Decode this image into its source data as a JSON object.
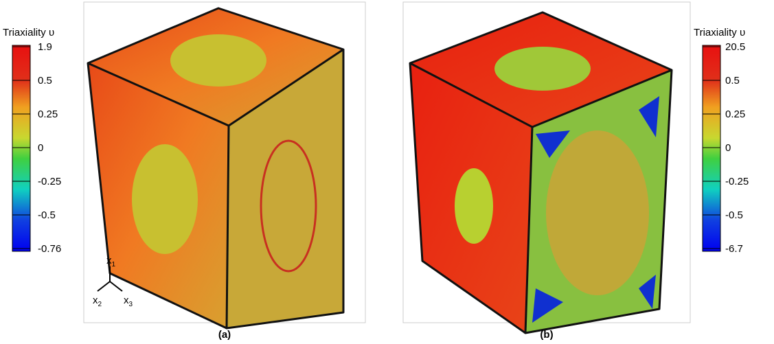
{
  "panels": [
    {
      "label": "(a)",
      "colorbar": {
        "title": "Triaxiality υ",
        "ticks": [
          "1.9",
          "0.5",
          "0.25",
          "0",
          "-0.25",
          "-0.5",
          "-0.76"
        ]
      }
    },
    {
      "label": "(b)",
      "colorbar": {
        "title": "Triaxiality υ",
        "ticks": [
          "20.5",
          "0.5",
          "0.25",
          "0",
          "-0.25",
          "-0.5",
          "-6.7"
        ]
      }
    }
  ],
  "triad": [
    {
      "base": "x",
      "sub": "1"
    },
    {
      "base": "x",
      "sub": "2"
    },
    {
      "base": "x",
      "sub": "3"
    }
  ]
}
